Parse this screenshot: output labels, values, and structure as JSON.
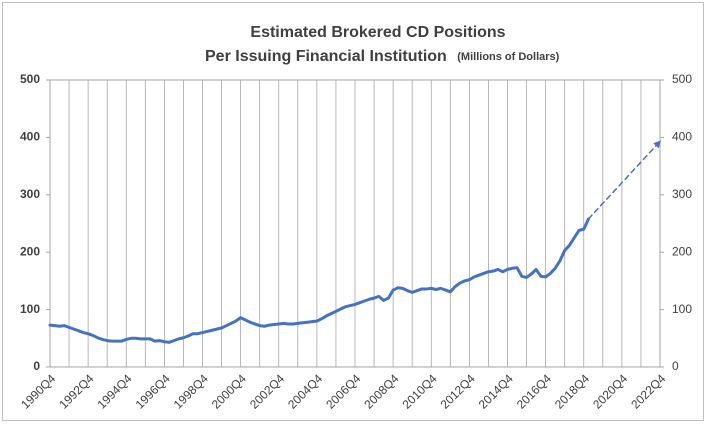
{
  "chart_data": {
    "type": "line",
    "title": "Estimated Brokered CD Positions",
    "subtitle": "Per Issuing Financial Institution",
    "units": "(Millions of Dollars)",
    "categories": [
      "1990Q4",
      null,
      null,
      null,
      null,
      null,
      null,
      null,
      "1992Q4",
      null,
      null,
      null,
      null,
      null,
      null,
      null,
      "1994Q4",
      null,
      null,
      null,
      null,
      null,
      null,
      null,
      "1996Q4",
      null,
      null,
      null,
      null,
      null,
      null,
      null,
      "1998Q4",
      null,
      null,
      null,
      null,
      null,
      null,
      null,
      "2000Q4",
      null,
      null,
      null,
      null,
      null,
      null,
      null,
      "2002Q4",
      null,
      null,
      null,
      null,
      null,
      null,
      null,
      "2004Q4",
      null,
      null,
      null,
      null,
      null,
      null,
      null,
      "2006Q4",
      null,
      null,
      null,
      null,
      null,
      null,
      null,
      "2008Q4",
      null,
      null,
      null,
      null,
      null,
      null,
      null,
      "2010Q4",
      null,
      null,
      null,
      null,
      null,
      null,
      null,
      "2012Q4",
      null,
      null,
      null,
      null,
      null,
      null,
      null,
      "2014Q4",
      null,
      null,
      null,
      null,
      null,
      null,
      null,
      "2016Q4",
      null,
      null,
      null,
      null,
      null,
      null,
      null,
      "2018Q4",
      null,
      null,
      null,
      null,
      null,
      null,
      null,
      "2020Q4",
      null,
      null,
      null,
      null,
      null,
      null,
      null,
      "2022Q4"
    ],
    "series": [
      {
        "color": "#4472c4",
        "dashed": false,
        "values": [
          73,
          72,
          71,
          72,
          69,
          66,
          63,
          60,
          58,
          55,
          51,
          48,
          46,
          45,
          45,
          45,
          48,
          50,
          50,
          49,
          49,
          49,
          45,
          46,
          44,
          43,
          46,
          49,
          51,
          54,
          58,
          58,
          60,
          62,
          64,
          66,
          68,
          72,
          76,
          80,
          86,
          82,
          78,
          75,
          72,
          71,
          73,
          74,
          75,
          76,
          75,
          75,
          76,
          77,
          78,
          79,
          80,
          84,
          89,
          93,
          97,
          101,
          105,
          107,
          109,
          112,
          115,
          118,
          120,
          123,
          116,
          120,
          134,
          138,
          137,
          133,
          130,
          133,
          136,
          136,
          137,
          135,
          137,
          134,
          131,
          140,
          146,
          150,
          152,
          157,
          160,
          163,
          166,
          167,
          170,
          166,
          170,
          172,
          173,
          158,
          156,
          162,
          170,
          158,
          157,
          163,
          172,
          185,
          203,
          212,
          225,
          238,
          240,
          258,
          null,
          null,
          null,
          null,
          null,
          null,
          null,
          null,
          null,
          null,
          null,
          null,
          null,
          null,
          null
        ]
      },
      {
        "color": "#4472c4",
        "dashed": true,
        "values": [
          null,
          null,
          null,
          null,
          null,
          null,
          null,
          null,
          null,
          null,
          null,
          null,
          null,
          null,
          null,
          null,
          null,
          null,
          null,
          null,
          null,
          null,
          null,
          null,
          null,
          null,
          null,
          null,
          null,
          null,
          null,
          null,
          null,
          null,
          null,
          null,
          null,
          null,
          null,
          null,
          null,
          null,
          null,
          null,
          null,
          null,
          null,
          null,
          null,
          null,
          null,
          null,
          null,
          null,
          null,
          null,
          null,
          null,
          null,
          null,
          null,
          null,
          null,
          null,
          null,
          null,
          null,
          null,
          null,
          null,
          null,
          null,
          null,
          null,
          null,
          null,
          null,
          null,
          null,
          null,
          null,
          null,
          null,
          null,
          null,
          null,
          null,
          null,
          null,
          null,
          null,
          null,
          null,
          null,
          null,
          null,
          null,
          null,
          null,
          null,
          null,
          null,
          null,
          null,
          null,
          null,
          null,
          null,
          null,
          null,
          null,
          null,
          null,
          258,
          267,
          276,
          285,
          294,
          303,
          312,
          321,
          330,
          339,
          348,
          357,
          366,
          375,
          384,
          393
        ]
      }
    ],
    "ylim": [
      0,
      500
    ],
    "yticks": [
      0,
      100,
      200,
      300,
      400,
      500
    ],
    "y2lim": [
      0,
      500
    ],
    "y2ticks": [
      0,
      100,
      200,
      300,
      400,
      500
    ],
    "grid": "x"
  }
}
